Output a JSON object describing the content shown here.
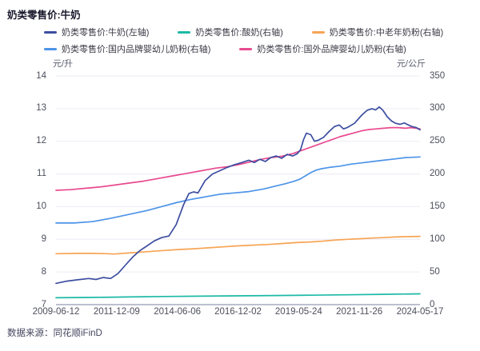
{
  "title": "奶类零售价:牛奶",
  "source": "数据来源：同花顺iFinD",
  "chart_data": {
    "type": "line",
    "title": "奶类零售价:牛奶",
    "grid": true,
    "legend_position": "top",
    "left_axis": {
      "unit": "元/升",
      "min": 7,
      "max": 14,
      "ticks": [
        14,
        13,
        12,
        11,
        10,
        9,
        8,
        7
      ]
    },
    "right_axis": {
      "unit": "元/公斤",
      "min": 0,
      "max": 350,
      "ticks": [
        350,
        300,
        250,
        200,
        150,
        100,
        50,
        0
      ]
    },
    "x_axis": {
      "start": "2009-06-12",
      "end": "2024-05-17",
      "ticks": [
        "2009-06-12",
        "2011-12-09",
        "2014-06-06",
        "2016-12-02",
        "2019-05-24",
        "2021-11-26",
        "2024-05-17"
      ]
    },
    "colors": {
      "grid": "#ECECF5",
      "axis_line": "#A6ACBD"
    },
    "series": [
      {
        "name": "奶类零售价:酸奶(右轴)",
        "legend_row": 0,
        "legend_col": 1,
        "axis": "right",
        "color": "#1CB9A6",
        "points": [
          [
            0,
            10.5
          ],
          [
            0.1,
            11
          ],
          [
            0.2,
            11.8
          ],
          [
            0.3,
            12.5
          ],
          [
            0.4,
            13
          ],
          [
            0.5,
            13.5
          ],
          [
            0.6,
            14
          ],
          [
            0.7,
            14.5
          ],
          [
            0.8,
            15
          ],
          [
            0.9,
            15.8
          ],
          [
            1,
            16.5
          ]
        ]
      },
      {
        "name": "奶类零售价:中老年奶粉(右轴)",
        "legend_row": 0,
        "legend_col": 2,
        "axis": "right",
        "color": "#F7A455",
        "points": [
          [
            0,
            78
          ],
          [
            0.06,
            78.5
          ],
          [
            0.1,
            78.5
          ],
          [
            0.14,
            78
          ],
          [
            0.16,
            77.5
          ],
          [
            0.2,
            79
          ],
          [
            0.25,
            81
          ],
          [
            0.3,
            83
          ],
          [
            0.34,
            84.5
          ],
          [
            0.38,
            85.5
          ],
          [
            0.42,
            87
          ],
          [
            0.46,
            88.5
          ],
          [
            0.5,
            90
          ],
          [
            0.54,
            91
          ],
          [
            0.58,
            92
          ],
          [
            0.62,
            93.5
          ],
          [
            0.66,
            95
          ],
          [
            0.7,
            96
          ],
          [
            0.73,
            97
          ],
          [
            0.77,
            99
          ],
          [
            0.8,
            100
          ],
          [
            0.84,
            101
          ],
          [
            0.87,
            102
          ],
          [
            0.9,
            102.5
          ],
          [
            0.93,
            103.5
          ],
          [
            0.96,
            104
          ],
          [
            1,
            104.5
          ]
        ]
      },
      {
        "name": "奶类零售价:国内品牌婴幼儿奶粉(右轴)",
        "legend_row": 1,
        "legend_col": 0,
        "axis": "right",
        "color": "#4D94E8",
        "points": [
          [
            0,
            125
          ],
          [
            0.05,
            125
          ],
          [
            0.1,
            127
          ],
          [
            0.15,
            132
          ],
          [
            0.2,
            138
          ],
          [
            0.25,
            144
          ],
          [
            0.29,
            150
          ],
          [
            0.33,
            156
          ],
          [
            0.37,
            161
          ],
          [
            0.41,
            165
          ],
          [
            0.45,
            169
          ],
          [
            0.49,
            171
          ],
          [
            0.53,
            173
          ],
          [
            0.57,
            177
          ],
          [
            0.6,
            181
          ],
          [
            0.63,
            185
          ],
          [
            0.655,
            189
          ],
          [
            0.67,
            192
          ],
          [
            0.685,
            197
          ],
          [
            0.7,
            202
          ],
          [
            0.715,
            206
          ],
          [
            0.73,
            208
          ],
          [
            0.75,
            210
          ],
          [
            0.78,
            212
          ],
          [
            0.81,
            215
          ],
          [
            0.84,
            217
          ],
          [
            0.87,
            219
          ],
          [
            0.9,
            221
          ],
          [
            0.93,
            223
          ],
          [
            0.96,
            225
          ],
          [
            1,
            226
          ]
        ]
      },
      {
        "name": "奶类零售价:国外品牌婴幼儿奶粉(右轴)",
        "legend_row": 1,
        "legend_col": 1,
        "axis": "right",
        "color": "#E84A8F",
        "points": [
          [
            0,
            175
          ],
          [
            0.04,
            176
          ],
          [
            0.08,
            178
          ],
          [
            0.12,
            180
          ],
          [
            0.16,
            183
          ],
          [
            0.2,
            186
          ],
          [
            0.24,
            189
          ],
          [
            0.28,
            193
          ],
          [
            0.32,
            197
          ],
          [
            0.36,
            201
          ],
          [
            0.4,
            205
          ],
          [
            0.44,
            209
          ],
          [
            0.47,
            211
          ],
          [
            0.5,
            214
          ],
          [
            0.53,
            218
          ],
          [
            0.56,
            222
          ],
          [
            0.59,
            225
          ],
          [
            0.62,
            227
          ],
          [
            0.65,
            231
          ],
          [
            0.68,
            237
          ],
          [
            0.7,
            241
          ],
          [
            0.72,
            245
          ],
          [
            0.74,
            249
          ],
          [
            0.76,
            253
          ],
          [
            0.78,
            257
          ],
          [
            0.8,
            260
          ],
          [
            0.82,
            263
          ],
          [
            0.84,
            266
          ],
          [
            0.86,
            268
          ],
          [
            0.88,
            269
          ],
          [
            0.9,
            270
          ],
          [
            0.92,
            271
          ],
          [
            0.94,
            271
          ],
          [
            0.96,
            270
          ],
          [
            0.975,
            271
          ],
          [
            0.99,
            270
          ],
          [
            1,
            269
          ]
        ]
      },
      {
        "name": "奶类零售价:牛奶(左轴)",
        "legend_row": 0,
        "legend_col": 0,
        "axis": "left",
        "color": "#3D4EA0",
        "points": [
          [
            0,
            7.65
          ],
          [
            0.03,
            7.72
          ],
          [
            0.06,
            7.76
          ],
          [
            0.09,
            7.8
          ],
          [
            0.11,
            7.77
          ],
          [
            0.13,
            7.83
          ],
          [
            0.15,
            7.8
          ],
          [
            0.17,
            7.95
          ],
          [
            0.19,
            8.2
          ],
          [
            0.21,
            8.45
          ],
          [
            0.23,
            8.65
          ],
          [
            0.25,
            8.8
          ],
          [
            0.27,
            8.95
          ],
          [
            0.29,
            9.05
          ],
          [
            0.31,
            9.1
          ],
          [
            0.33,
            9.45
          ],
          [
            0.35,
            10.05
          ],
          [
            0.365,
            10.4
          ],
          [
            0.378,
            10.45
          ],
          [
            0.39,
            10.42
          ],
          [
            0.41,
            10.8
          ],
          [
            0.43,
            11.0
          ],
          [
            0.45,
            11.1
          ],
          [
            0.47,
            11.2
          ],
          [
            0.49,
            11.28
          ],
          [
            0.51,
            11.35
          ],
          [
            0.53,
            11.42
          ],
          [
            0.545,
            11.35
          ],
          [
            0.56,
            11.45
          ],
          [
            0.575,
            11.38
          ],
          [
            0.59,
            11.5
          ],
          [
            0.605,
            11.55
          ],
          [
            0.62,
            11.48
          ],
          [
            0.635,
            11.6
          ],
          [
            0.65,
            11.55
          ],
          [
            0.663,
            11.62
          ],
          [
            0.672,
            11.75
          ],
          [
            0.68,
            12.05
          ],
          [
            0.688,
            12.25
          ],
          [
            0.7,
            12.2
          ],
          [
            0.71,
            12.0
          ],
          [
            0.72,
            12.03
          ],
          [
            0.735,
            12.12
          ],
          [
            0.75,
            12.3
          ],
          [
            0.765,
            12.45
          ],
          [
            0.778,
            12.5
          ],
          [
            0.79,
            12.38
          ],
          [
            0.8,
            12.42
          ],
          [
            0.82,
            12.55
          ],
          [
            0.84,
            12.8
          ],
          [
            0.855,
            12.95
          ],
          [
            0.868,
            13.0
          ],
          [
            0.878,
            12.96
          ],
          [
            0.888,
            13.05
          ],
          [
            0.898,
            12.95
          ],
          [
            0.91,
            12.75
          ],
          [
            0.922,
            12.62
          ],
          [
            0.933,
            12.55
          ],
          [
            0.945,
            12.52
          ],
          [
            0.957,
            12.56
          ],
          [
            0.968,
            12.5
          ],
          [
            0.978,
            12.45
          ],
          [
            0.99,
            12.42
          ],
          [
            1,
            12.35
          ]
        ]
      }
    ]
  }
}
